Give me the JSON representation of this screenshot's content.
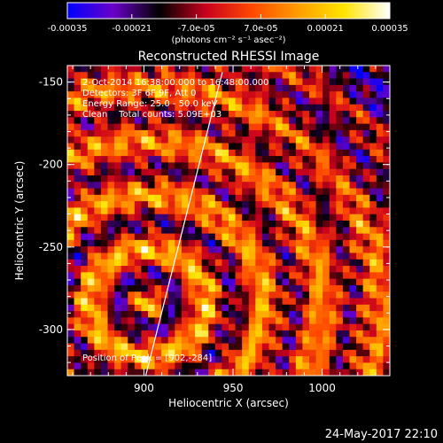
{
  "chart_data": {
    "type": "heatmap",
    "title": "Reconstructed RHESSI Image",
    "colorbar": {
      "ticks": [
        "-0.00035",
        "-0.00021",
        "-7.0e-05",
        "7.0e-05",
        "0.00021",
        "0.00035"
      ],
      "range": [
        -0.00035,
        0.00035
      ],
      "units_label": "(photons cm⁻² s⁻¹ asec⁻²)",
      "colormap": [
        "#0000ff",
        "#6a00c8",
        "#000000",
        "#c8001e",
        "#ff4800",
        "#ff9c00",
        "#ffe400",
        "#ffffff"
      ]
    },
    "xlabel": "Heliocentric X (arcsec)",
    "ylabel": "Heliocentric Y (arcsec)",
    "xlim": [
      857,
      1038
    ],
    "ylim": [
      -328,
      -140
    ],
    "xticks": [
      "900",
      "950",
      "1000"
    ],
    "yticks": [
      "-150",
      "-200",
      "-250",
      "-300"
    ],
    "annotations": [
      "2-Oct-2014 16:38:00.000 to 16:48:00.000",
      "Detectors: 3F 6F 9F, Att 0",
      "Energy Range: 25.0 - 50.0 keV",
      "Clean    Total counts: 5.09E+03"
    ],
    "peak_text": "Position of Peak = [902,-284]",
    "peak": [
      902,
      -284
    ],
    "limb_line": [
      [
        901,
        -328
      ],
      [
        944,
        -144
      ]
    ]
  },
  "footer": {
    "date": "24-May-2017 22:10"
  },
  "colors": {
    "background": "#000000",
    "foreground": "#ffffff"
  }
}
